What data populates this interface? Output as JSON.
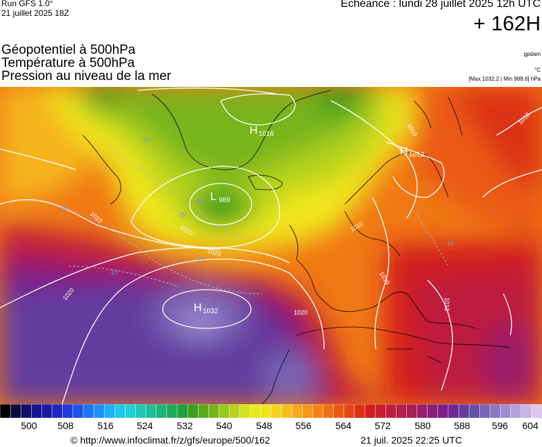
{
  "header": {
    "run": "Run GFS 1.0°",
    "run_date": "21 juillet 2025 18Z",
    "echeance": "Echéance : lundi 28 juillet 2025 12h UTC",
    "horizon": "+ 162H",
    "layers": [
      "Géopotentiel à 500hPa",
      "Température à 500hPa",
      "Pression au niveau de la mer"
    ],
    "unit_geopotential": "gpdam",
    "unit_temperature": "°C",
    "pressure_extremes": "[Max 1032.2 | Min 988.6] hPa"
  },
  "map": {
    "region": "europe",
    "pressure_centers": [
      {
        "type": "H",
        "value": "1016"
      },
      {
        "type": "H",
        "value": "1012"
      },
      {
        "type": "L",
        "value": "989"
      },
      {
        "type": "H",
        "value": "1032"
      }
    ],
    "isobar_labels": [
      "1010",
      "1010",
      "1010",
      "1020",
      "1020",
      "1020",
      "1010",
      "1010",
      "1010",
      "1010"
    ],
    "isotherm_labels": [
      "-20",
      "-20",
      "-20",
      "-15",
      "-15",
      "-15",
      "-10"
    ]
  },
  "legend": {
    "colors": [
      "#000000",
      "#0c0c3c",
      "#10106a",
      "#14148c",
      "#1a1aa6",
      "#1e28c0",
      "#1e3cd8",
      "#1e55e6",
      "#1e73f0",
      "#1e91f5",
      "#1eaff5",
      "#1ec8eb",
      "#1ed2d2",
      "#1ec8b4",
      "#1ebe96",
      "#1eb478",
      "#1eaa5a",
      "#1ea03c",
      "#3ca01e",
      "#5aaa1e",
      "#78b41e",
      "#96c81e",
      "#b4d21e",
      "#d2e11e",
      "#e6eb1e",
      "#f0e61e",
      "#f5d21e",
      "#f5be1e",
      "#f5aa1e",
      "#f5961e",
      "#f58214",
      "#f06e14",
      "#eb5a14",
      "#e64614",
      "#dc3214",
      "#d21e1e",
      "#c81e2d",
      "#be1e3c",
      "#b41e4b",
      "#aa1e5a",
      "#9b1e69",
      "#8c1e78",
      "#7d1e87",
      "#6e2896",
      "#643ca0",
      "#6450aa",
      "#7864b4",
      "#8c78c3",
      "#a08cd2",
      "#b4a0dc",
      "#c8b4e6",
      "#dcc8ef"
    ],
    "ticks": [
      "500",
      "508",
      "516",
      "524",
      "532",
      "540",
      "548",
      "556",
      "564",
      "572",
      "580",
      "588",
      "596",
      "604"
    ]
  },
  "footer": {
    "credit": "© http://www.infoclimat.fr/z/gfs/europe/500/162",
    "timestamp": "21 juil. 2025 22:25 UTC"
  }
}
